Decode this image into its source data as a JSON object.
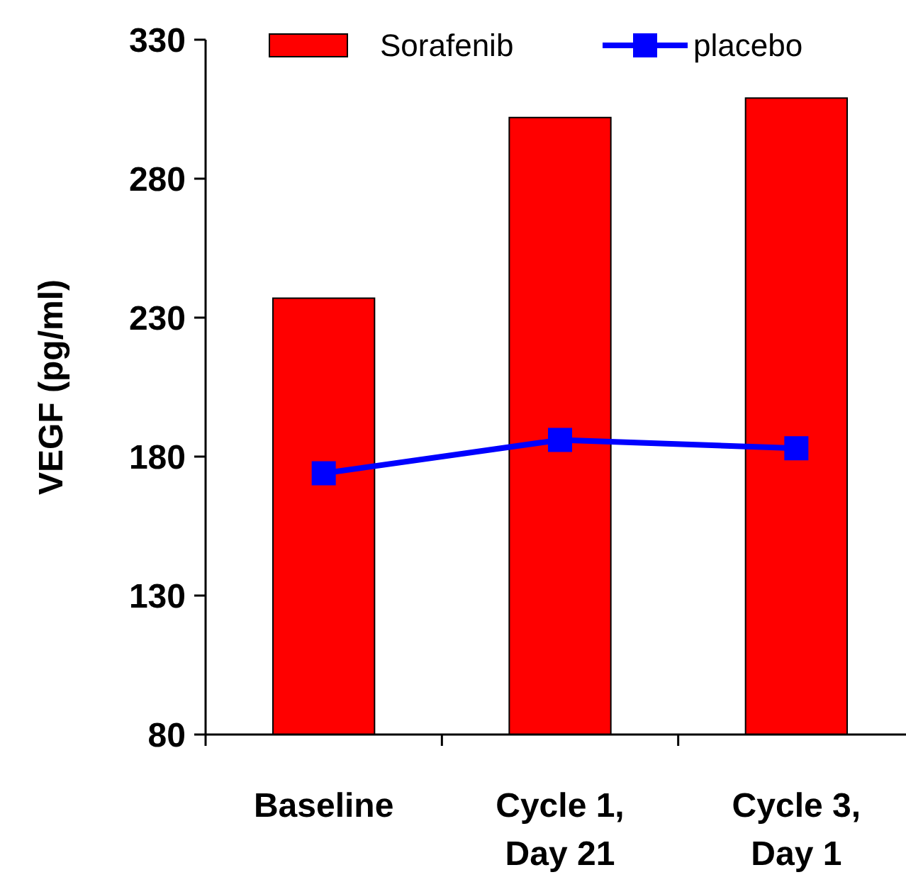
{
  "chart_data": {
    "type": "bar",
    "ylabel": "VEGF (pg/ml)",
    "categories": [
      "Baseline",
      "Cycle 1, Day 21",
      "Cycle 3, Day 1"
    ],
    "series": [
      {
        "name": "Sorafenib",
        "color": "#ff0000",
        "values": [
          237,
          302,
          309
        ]
      },
      {
        "name": "placebo",
        "type": "line",
        "color": "#0000ff",
        "values": [
          174,
          186,
          183
        ]
      }
    ],
    "ylim": [
      80,
      330
    ],
    "yticks": [
      80,
      130,
      180,
      230,
      280,
      330
    ],
    "legend": "top",
    "marker": "square",
    "grid": false
  }
}
